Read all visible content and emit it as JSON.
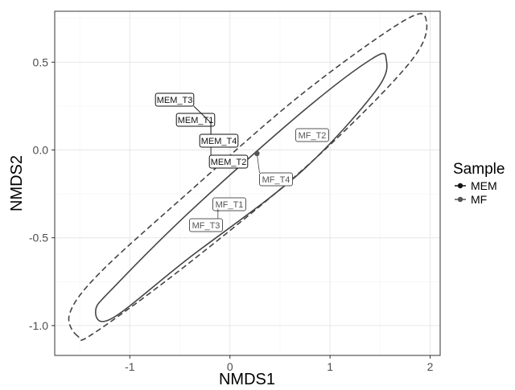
{
  "chart_data": {
    "type": "scatter",
    "title": "",
    "xlabel": "NMDS1",
    "ylabel": "NMDS2",
    "xlim": [
      -1.75,
      2.1
    ],
    "ylim": [
      -1.17,
      0.79
    ],
    "x_ticks": [
      -1,
      0,
      1,
      2
    ],
    "x_tick_labels": [
      "-1",
      "0",
      "1",
      "2"
    ],
    "y_ticks": [
      -1.0,
      -0.5,
      0.0,
      0.5
    ],
    "y_tick_labels": [
      "-1.0",
      "-0.5",
      "0.0",
      "0.5"
    ],
    "grid": true,
    "legend": {
      "title": "Sample",
      "placement": "right",
      "entries": [
        {
          "label": "MEM",
          "color": "#111111"
        },
        {
          "label": "MF",
          "color": "#555555"
        }
      ]
    },
    "series": [
      {
        "name": "MEM",
        "color": "#111111",
        "ellipse_style": "solid",
        "points": [
          {
            "label": "MEM_T1",
            "x": -0.19,
            "y": 0.155
          },
          {
            "label": "MEM_T2",
            "x": -0.19,
            "y": 0.155
          },
          {
            "label": "MEM_T3",
            "x": -0.19,
            "y": 0.155
          },
          {
            "label": "MEM_T4",
            "x": -0.19,
            "y": 0.155
          }
        ],
        "ellipse": [
          [
            -1.18,
            -0.96
          ],
          [
            -1.34,
            -0.91
          ],
          [
            -1.14,
            -0.77
          ],
          [
            -0.36,
            -0.33
          ],
          [
            0.75,
            0.23
          ],
          [
            1.42,
            0.52
          ],
          [
            1.56,
            0.52
          ],
          [
            1.46,
            0.34
          ],
          [
            0.7,
            -0.13
          ],
          [
            -0.42,
            -0.62
          ],
          [
            -1.18,
            -0.96
          ]
        ]
      },
      {
        "name": "MF",
        "color": "#555555",
        "ellipse_style": "dashed",
        "points": [
          {
            "label": "MF_T1",
            "x": -0.12,
            "y": -0.335
          },
          {
            "label": "MF_T2",
            "x": 0.75,
            "y": 0.065
          },
          {
            "label": "MF_T3",
            "x": -0.12,
            "y": -0.335
          },
          {
            "label": "MF_T4",
            "x": 0.27,
            "y": -0.02
          }
        ],
        "ellipse": [
          [
            -1.52,
            -1.06
          ],
          [
            -1.6,
            -0.93
          ],
          [
            -1.3,
            -0.7
          ],
          [
            -0.45,
            -0.26
          ],
          [
            0.7,
            0.31
          ],
          [
            1.72,
            0.73
          ],
          [
            1.96,
            0.74
          ],
          [
            1.8,
            0.5
          ],
          [
            0.83,
            -0.06
          ],
          [
            -0.4,
            -0.64
          ],
          [
            -1.35,
            -1.04
          ],
          [
            -1.52,
            -1.06
          ]
        ]
      }
    ]
  }
}
